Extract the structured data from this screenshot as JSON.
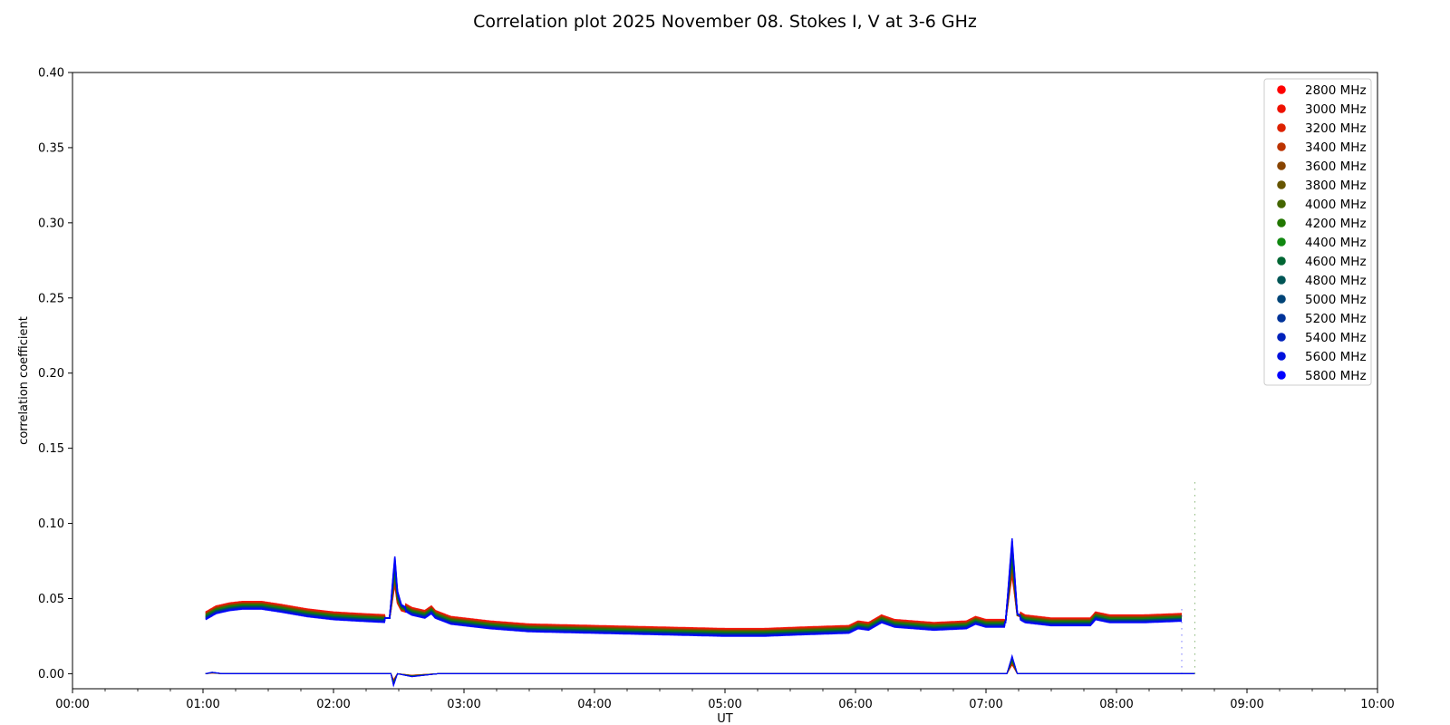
{
  "chart_data": {
    "type": "scatter",
    "title": "Correlation plot 2025 November 08. Stokes I, V at 3-6 GHz",
    "xlabel": "UT",
    "ylabel": "correlation coefficient",
    "xlim": [
      0,
      10
    ],
    "ylim": [
      -0.01,
      0.4
    ],
    "x_ticks": [
      {
        "value": 0,
        "label": "00:00"
      },
      {
        "value": 1,
        "label": "01:00"
      },
      {
        "value": 2,
        "label": "02:00"
      },
      {
        "value": 3,
        "label": "03:00"
      },
      {
        "value": 4,
        "label": "04:00"
      },
      {
        "value": 5,
        "label": "05:00"
      },
      {
        "value": 6,
        "label": "06:00"
      },
      {
        "value": 7,
        "label": "07:00"
      },
      {
        "value": 8,
        "label": "08:00"
      },
      {
        "value": 9,
        "label": "09:00"
      },
      {
        "value": 10,
        "label": "10:00"
      }
    ],
    "y_ticks": [
      {
        "value": 0.0,
        "label": "0.00"
      },
      {
        "value": 0.05,
        "label": "0.05"
      },
      {
        "value": 0.1,
        "label": "0.10"
      },
      {
        "value": 0.15,
        "label": "0.15"
      },
      {
        "value": 0.2,
        "label": "0.20"
      },
      {
        "value": 0.25,
        "label": "0.25"
      },
      {
        "value": 0.3,
        "label": "0.30"
      },
      {
        "value": 0.35,
        "label": "0.35"
      },
      {
        "value": 0.4,
        "label": "0.40"
      }
    ],
    "grid": false,
    "legend_position": "top-right",
    "series": [
      {
        "name": "2800 MHz",
        "color": "#ff0000"
      },
      {
        "name": "3000 MHz",
        "color": "#ee1100"
      },
      {
        "name": "3200 MHz",
        "color": "#dd2200"
      },
      {
        "name": "3400 MHz",
        "color": "#bb3300"
      },
      {
        "name": "3600 MHz",
        "color": "#884400"
      },
      {
        "name": "3800 MHz",
        "color": "#665500"
      },
      {
        "name": "4000 MHz",
        "color": "#446600"
      },
      {
        "name": "4200 MHz",
        "color": "#227700"
      },
      {
        "name": "4400 MHz",
        "color": "#118811"
      },
      {
        "name": "4600 MHz",
        "color": "#006633"
      },
      {
        "name": "4800 MHz",
        "color": "#005555"
      },
      {
        "name": "5000 MHz",
        "color": "#004477"
      },
      {
        "name": "5200 MHz",
        "color": "#003399"
      },
      {
        "name": "5400 MHz",
        "color": "#0022bb"
      },
      {
        "name": "5600 MHz",
        "color": "#0011dd"
      },
      {
        "name": "5800 MHz",
        "color": "#0000ff"
      }
    ],
    "stokes_i_profile": [
      [
        1.02,
        0.039
      ],
      [
        1.1,
        0.043
      ],
      [
        1.2,
        0.045
      ],
      [
        1.3,
        0.046
      ],
      [
        1.45,
        0.046
      ],
      [
        1.6,
        0.044
      ],
      [
        1.8,
        0.041
      ],
      [
        2.0,
        0.039
      ],
      [
        2.2,
        0.038
      ],
      [
        2.43,
        0.037
      ],
      [
        2.47,
        0.078
      ],
      [
        2.49,
        0.055
      ],
      [
        2.52,
        0.046
      ],
      [
        2.6,
        0.042
      ],
      [
        2.7,
        0.04
      ],
      [
        2.75,
        0.043
      ],
      [
        2.78,
        0.04
      ],
      [
        2.9,
        0.036
      ],
      [
        3.2,
        0.033
      ],
      [
        3.5,
        0.031
      ],
      [
        4.0,
        0.03
      ],
      [
        4.5,
        0.029
      ],
      [
        5.0,
        0.028
      ],
      [
        5.3,
        0.028
      ],
      [
        5.6,
        0.029
      ],
      [
        5.95,
        0.03
      ],
      [
        6.02,
        0.033
      ],
      [
        6.1,
        0.032
      ],
      [
        6.2,
        0.037
      ],
      [
        6.3,
        0.034
      ],
      [
        6.6,
        0.032
      ],
      [
        6.85,
        0.033
      ],
      [
        6.92,
        0.036
      ],
      [
        7.0,
        0.034
      ],
      [
        7.15,
        0.034
      ],
      [
        7.2,
        0.09
      ],
      [
        7.24,
        0.04
      ],
      [
        7.3,
        0.037
      ],
      [
        7.5,
        0.035
      ],
      [
        7.8,
        0.035
      ],
      [
        7.84,
        0.039
      ],
      [
        7.95,
        0.037
      ],
      [
        8.2,
        0.037
      ],
      [
        8.5,
        0.038
      ]
    ],
    "stokes_v_profile": [
      [
        1.02,
        0.0
      ],
      [
        1.07,
        0.001
      ],
      [
        1.15,
        0.0
      ],
      [
        2.44,
        0.0
      ],
      [
        2.46,
        -0.008
      ],
      [
        2.49,
        0.0
      ],
      [
        2.6,
        -0.002
      ],
      [
        2.8,
        0.0
      ],
      [
        7.16,
        0.0
      ],
      [
        7.2,
        0.012
      ],
      [
        7.24,
        0.0
      ],
      [
        8.6,
        0.0
      ]
    ]
  }
}
